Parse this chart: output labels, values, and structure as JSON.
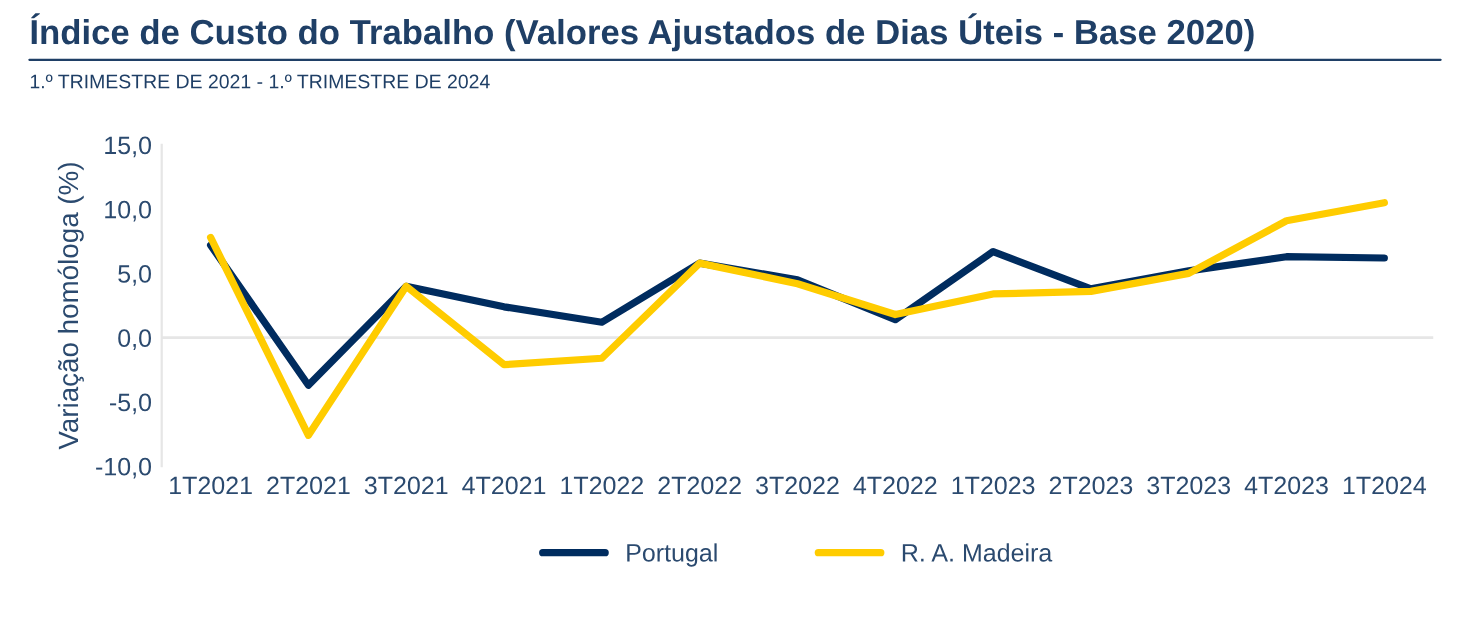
{
  "chart_data": {
    "type": "line",
    "title": "Índice de Custo do Trabalho (Valores Ajustados de Dias Úteis - Base 2020)",
    "subtitle": "1.º TRIMESTRE DE 2021 - 1.º TRIMESTRE DE 2024",
    "ylabel": "Variação homóloga (%)",
    "categories": [
      "1T2021",
      "2T2021",
      "3T2021",
      "4T2021",
      "1T2022",
      "2T2022",
      "3T2022",
      "4T2022",
      "1T2023",
      "2T2023",
      "3T2023",
      "4T2023",
      "1T2024"
    ],
    "series": [
      {
        "name": "Portugal",
        "color": "#002c5f",
        "values": [
          7.2,
          -3.7,
          4.0,
          2.4,
          1.2,
          5.8,
          4.5,
          1.4,
          6.7,
          3.8,
          5.2,
          6.3,
          6.2
        ]
      },
      {
        "name": "R. A. Madeira",
        "color": "#ffcc00",
        "values": [
          7.8,
          -7.6,
          4.0,
          -2.1,
          -1.6,
          5.8,
          4.2,
          1.8,
          3.4,
          3.6,
          5.0,
          9.1,
          10.5
        ]
      }
    ],
    "ylim": [
      -10,
      15
    ],
    "yticks": [
      {
        "value": -10,
        "label": "-10,0"
      },
      {
        "value": -5,
        "label": "-5,0"
      },
      {
        "value": 0,
        "label": "0,0"
      },
      {
        "value": 5,
        "label": "5,0"
      },
      {
        "value": 10,
        "label": "10,0"
      },
      {
        "value": 15,
        "label": "15,0"
      }
    ],
    "ref_lines": [
      {
        "axis": "y",
        "value": 0,
        "color": "#e6e6e6"
      }
    ],
    "grid": false,
    "legend": "bottom",
    "marker": "none",
    "line_style": "solid"
  }
}
